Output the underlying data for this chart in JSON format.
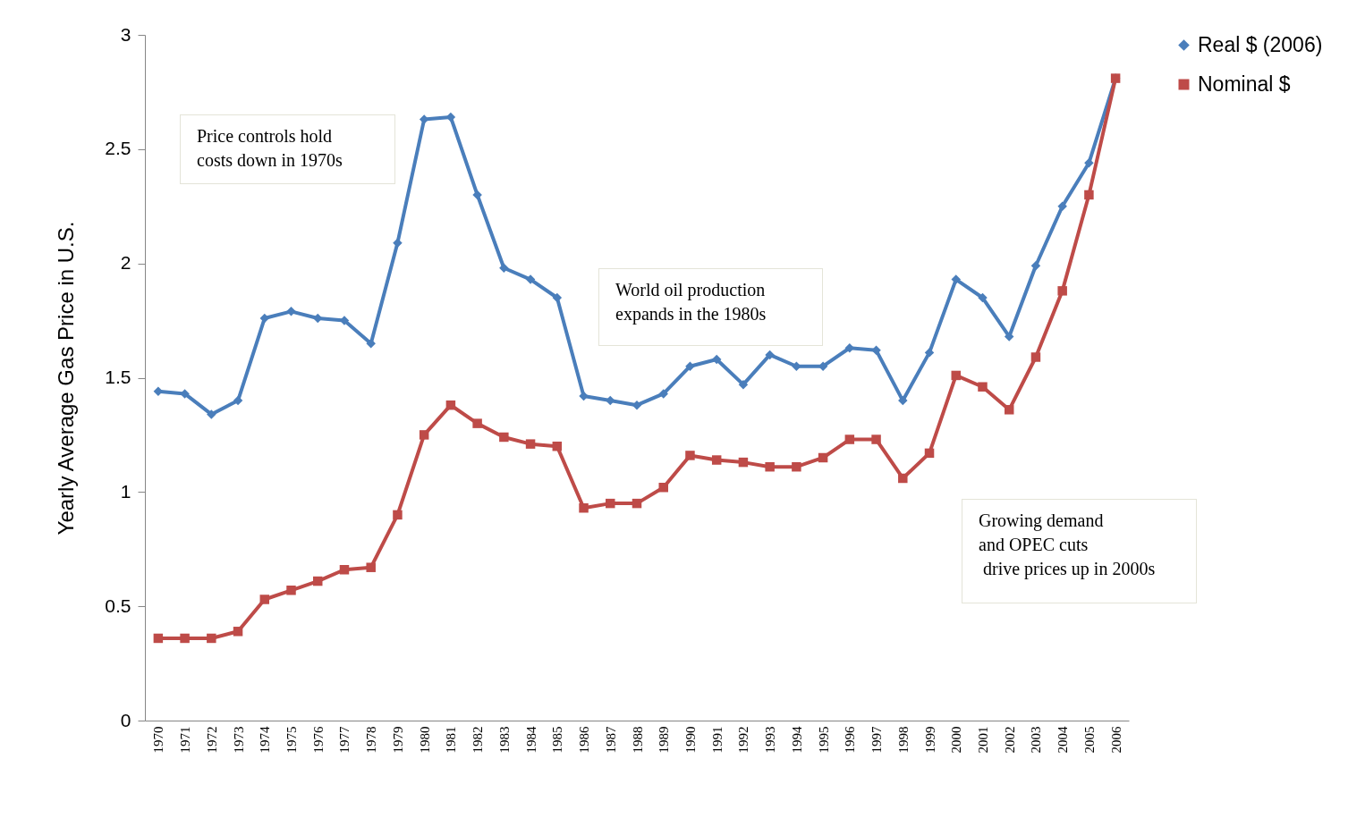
{
  "chart_data": {
    "type": "line",
    "ylabel": "Yearly Average Gas Price in U.S.",
    "categories": [
      "1970",
      "1971",
      "1972",
      "1973",
      "1974",
      "1975",
      "1976",
      "1977",
      "1978",
      "1979",
      "1980",
      "1981",
      "1982",
      "1983",
      "1984",
      "1985",
      "1986",
      "1987",
      "1988",
      "1989",
      "1990",
      "1991",
      "1992",
      "1993",
      "1994",
      "1995",
      "1996",
      "1997",
      "1998",
      "1999",
      "2000",
      "2001",
      "2002",
      "2003",
      "2004",
      "2005",
      "2006"
    ],
    "series": [
      {
        "name": "Real $ (2006)",
        "color": "#4a7ebb",
        "marker": "diamond",
        "values": [
          1.44,
          1.43,
          1.34,
          1.4,
          1.76,
          1.79,
          1.76,
          1.75,
          1.65,
          2.09,
          2.63,
          2.64,
          2.3,
          1.98,
          1.93,
          1.85,
          1.42,
          1.4,
          1.38,
          1.43,
          1.55,
          1.58,
          1.47,
          1.6,
          1.55,
          1.55,
          1.63,
          1.62,
          1.4,
          1.61,
          1.93,
          1.85,
          1.68,
          1.99,
          2.25,
          2.44,
          2.81
        ]
      },
      {
        "name": "Nominal $",
        "color": "#be4b48",
        "marker": "square",
        "values": [
          0.36,
          0.36,
          0.36,
          0.39,
          0.53,
          0.57,
          0.61,
          0.66,
          0.67,
          0.9,
          1.25,
          1.38,
          1.3,
          1.24,
          1.21,
          1.2,
          0.93,
          0.95,
          0.95,
          1.02,
          1.16,
          1.14,
          1.13,
          1.11,
          1.11,
          1.15,
          1.23,
          1.23,
          1.06,
          1.17,
          1.51,
          1.46,
          1.36,
          1.59,
          1.88,
          2.3,
          2.81
        ]
      }
    ],
    "ylim": [
      0,
      3
    ],
    "yticks": [
      0,
      0.5,
      1,
      1.5,
      2,
      2.5,
      3
    ],
    "grid": false,
    "legend": "right",
    "line_style": "solid",
    "annotations": [
      "Price controls hold\ncosts down in 1970s",
      "World oil production\nexpands in the 1980s",
      "Growing demand\nand OPEC cuts\n drive prices up in 2000s"
    ]
  }
}
